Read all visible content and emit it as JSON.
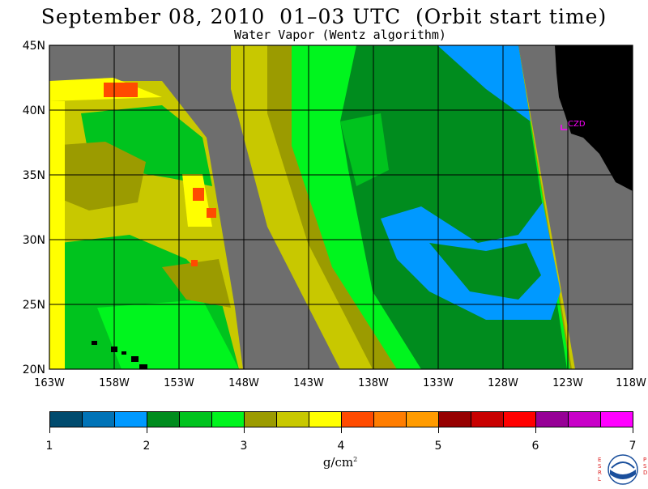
{
  "header": {
    "title": "September 08, 2010  01–03 UTC  (Orbit start time)",
    "subtitle": "Water Vapor (Wentz algorithm)"
  },
  "map": {
    "lat_labels": [
      "45N",
      "40N",
      "35N",
      "30N",
      "25N",
      "20N"
    ],
    "lon_labels": [
      "163W",
      "158W",
      "153W",
      "148W",
      "143W",
      "138W",
      "133W",
      "128W",
      "123W",
      "118W"
    ],
    "lat_range": [
      20,
      45
    ],
    "lon_range": [
      -163,
      -118
    ],
    "station_label": "CZD",
    "colors": {
      "no_data": "#6e6e6e",
      "land": "#000000",
      "station": "#ff00ff"
    }
  },
  "colorbar": {
    "tick_labels": [
      "1",
      "2",
      "3",
      "4",
      "5",
      "6",
      "7"
    ],
    "range": [
      1,
      7
    ],
    "units_text": "g/cm",
    "units_exp": "2",
    "colors": [
      "#004b6e",
      "#0073b7",
      "#0099ff",
      "#008c1e",
      "#00c31e",
      "#00f51e",
      "#9b9b00",
      "#c8c800",
      "#ffff00",
      "#ff4b00",
      "#ff7d00",
      "#ff9b00",
      "#960000",
      "#c80000",
      "#ff0000",
      "#960096",
      "#c800c8",
      "#ff00ff"
    ]
  },
  "logo": {
    "left_letters": "ESRL",
    "right_letters": "PSD"
  }
}
